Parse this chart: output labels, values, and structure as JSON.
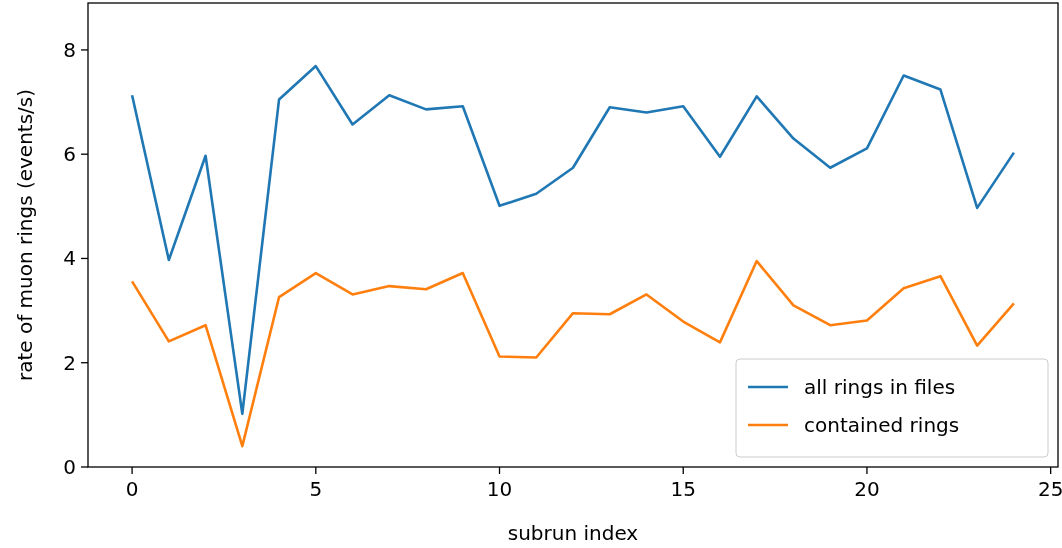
{
  "chart_data": {
    "type": "line",
    "xlabel": "subrun index",
    "ylabel": "rate of muon rings (events/s)",
    "x": [
      0,
      1,
      2,
      3,
      4,
      5,
      6,
      7,
      8,
      9,
      10,
      11,
      12,
      13,
      14,
      15,
      16,
      17,
      18,
      19,
      20,
      21,
      22,
      23,
      24
    ],
    "series": [
      {
        "name": "all rings in files",
        "color": "#1f77b4",
        "values": [
          7.13,
          3.97,
          5.97,
          1.02,
          7.05,
          7.69,
          6.57,
          7.13,
          6.86,
          6.92,
          5.01,
          5.24,
          5.74,
          6.9,
          6.8,
          6.92,
          5.95,
          7.11,
          6.3,
          5.74,
          6.11,
          7.51,
          7.24,
          4.97,
          6.03
        ]
      },
      {
        "name": "contained rings",
        "color": "#ff7f0e",
        "values": [
          3.56,
          2.41,
          2.72,
          0.4,
          3.26,
          3.72,
          3.31,
          3.47,
          3.41,
          3.72,
          2.12,
          2.1,
          2.95,
          2.93,
          3.31,
          2.79,
          2.39,
          3.95,
          3.1,
          2.72,
          2.81,
          3.43,
          3.66,
          2.33,
          3.14
        ]
      }
    ],
    "xlim": [
      -1.2,
      25.2
    ],
    "xticks": [
      0,
      5,
      10,
      15,
      20,
      25
    ],
    "ylim": [
      0,
      8.9
    ],
    "yticks": [
      0,
      2,
      4,
      6,
      8
    ],
    "grid": false,
    "legend": "bottom right",
    "marker": "none",
    "line_style": "solid"
  }
}
